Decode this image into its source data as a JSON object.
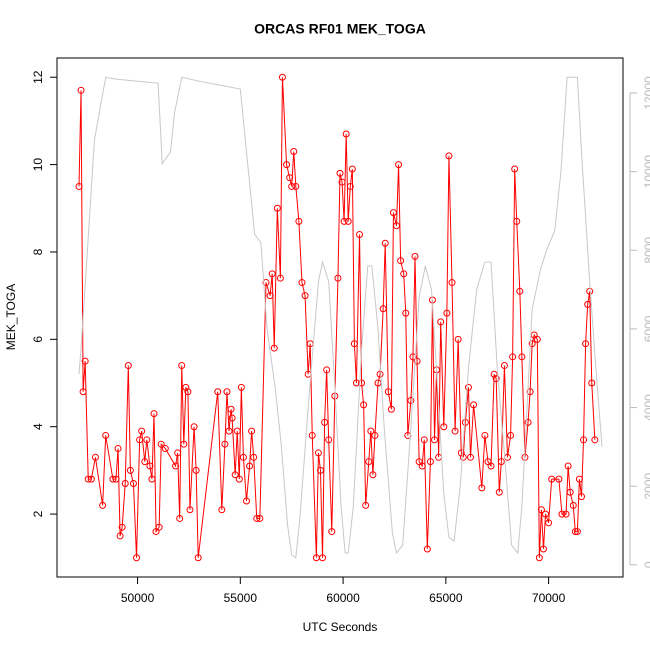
{
  "chart_data": {
    "type": "line",
    "title": "ORCAS RF01 MEK_TOGA",
    "xlabel": "UTC Seconds",
    "ylabel": "MEK_TOGA",
    "xlim": [
      46080,
      73620
    ],
    "xticks": [
      50000,
      55000,
      60000,
      65000,
      70000
    ],
    "ylim": [
      0.56,
      12.44
    ],
    "yticks": [
      2,
      4,
      6,
      8,
      10,
      12
    ],
    "y2lim": [
      -310,
      12890
    ],
    "y2ticks": [
      0,
      2000,
      4000,
      6000,
      8000,
      10000,
      12000
    ],
    "y2color": "#bbbbbb",
    "series": [
      {
        "color": "#ff0000",
        "points": true,
        "x": [
          47150,
          47250,
          47350,
          47450,
          47600,
          47750,
          47950,
          48300,
          48450,
          48800,
          48950,
          49050,
          49150,
          49250,
          49400,
          49550,
          49650,
          49800,
          49950,
          50100,
          50200,
          50350,
          50450,
          50600,
          50700,
          50800,
          50900,
          51050,
          51150,
          51350,
          51850,
          51950,
          52050,
          52150,
          52250,
          52350,
          52450,
          52550,
          52750,
          52850,
          52950,
          53900,
          54100,
          54250,
          54350,
          54450,
          54550,
          54600,
          54750,
          54850,
          54950,
          55050,
          55150,
          55300,
          55450,
          55550,
          55650,
          55800,
          55950,
          56250,
          56450,
          56550,
          56650,
          56800,
          56950,
          57050,
          57250,
          57400,
          57500,
          57600,
          57700,
          57850,
          58000,
          58150,
          58300,
          58400,
          58500,
          58700,
          58800,
          58900,
          59000,
          59100,
          59200,
          59300,
          59450,
          59600,
          59750,
          59850,
          59950,
          60050,
          60150,
          60250,
          60350,
          60450,
          60550,
          60650,
          60800,
          60900,
          61000,
          61100,
          61250,
          61350,
          61450,
          61550,
          61700,
          61800,
          61950,
          62050,
          62200,
          62350,
          62450,
          62600,
          62700,
          62800,
          62950,
          63050,
          63150,
          63300,
          63400,
          63500,
          63600,
          63700,
          63850,
          63950,
          64100,
          64250,
          64350,
          64450,
          64550,
          64650,
          64750,
          64900,
          65050,
          65150,
          65300,
          65450,
          65600,
          65750,
          65850,
          65950,
          66100,
          66200,
          66350,
          66750,
          66900,
          67050,
          67200,
          67350,
          67450,
          67600,
          67700,
          67850,
          68000,
          68150,
          68250,
          68350,
          68450,
          68600,
          68700,
          68850,
          69000,
          69100,
          69200,
          69300,
          69450,
          69550,
          69650,
          69750,
          69850,
          70000,
          70150,
          70500,
          70650,
          70850,
          70950,
          71050,
          71200,
          71300,
          71400,
          71500,
          71600,
          71700,
          71800,
          71900,
          72000,
          72100,
          72250
        ],
        "values": [
          9.5,
          11.7,
          4.8,
          5.5,
          2.8,
          2.8,
          3.3,
          2.2,
          3.8,
          2.8,
          2.8,
          3.5,
          1.5,
          1.7,
          2.7,
          5.4,
          3.0,
          2.7,
          1.0,
          3.7,
          3.9,
          3.2,
          3.7,
          3.1,
          2.8,
          4.3,
          1.6,
          1.7,
          3.6,
          3.5,
          3.1,
          3.4,
          1.9,
          5.4,
          3.6,
          4.9,
          4.8,
          2.1,
          4.0,
          3.0,
          1.0,
          4.8,
          2.1,
          3.6,
          4.8,
          3.9,
          4.4,
          4.2,
          2.9,
          3.9,
          2.8,
          4.9,
          3.3,
          2.3,
          3.1,
          3.9,
          3.3,
          1.9,
          1.9,
          7.3,
          7.0,
          7.5,
          5.8,
          9.0,
          7.4,
          12.0,
          10.0,
          9.7,
          9.5,
          10.3,
          9.5,
          8.7,
          7.3,
          7.0,
          5.2,
          5.9,
          3.8,
          1.0,
          3.4,
          3.0,
          1.0,
          4.1,
          5.3,
          3.7,
          1.6,
          4.7,
          7.4,
          9.8,
          9.6,
          8.7,
          10.7,
          8.7,
          9.5,
          9.9,
          5.9,
          5.0,
          8.4,
          5.0,
          4.5,
          2.2,
          3.2,
          3.9,
          2.9,
          3.8,
          5.0,
          5.2,
          6.7,
          8.2,
          4.8,
          4.4,
          8.9,
          8.6,
          10.0,
          7.8,
          7.5,
          6.6,
          3.8,
          4.6,
          5.6,
          7.9,
          5.5,
          3.2,
          3.1,
          3.7,
          1.2,
          3.2,
          6.9,
          3.7,
          5.3,
          3.3,
          6.4,
          4.0,
          6.6,
          10.2,
          7.3,
          3.9,
          6.0,
          3.4,
          3.3,
          4.1,
          4.9,
          3.3,
          4.5,
          2.6,
          3.8,
          3.2,
          3.1,
          5.2,
          5.1,
          2.5,
          3.2,
          5.4,
          3.3,
          3.8,
          5.6,
          9.9,
          8.7,
          7.1,
          5.6,
          3.3,
          4.1,
          4.8,
          5.9,
          6.1,
          6.0,
          1.0,
          2.1,
          1.2,
          2.0,
          1.8,
          2.8,
          2.8,
          2.0,
          2.0,
          3.1,
          2.5,
          2.2,
          1.6,
          1.6,
          2.8,
          2.4,
          3.7,
          5.9,
          6.8,
          7.1,
          5.0,
          3.7
        ]
      },
      {
        "color": "#c8c8c8",
        "axis": "y2",
        "points": false,
        "x": [
          47150,
          47250,
          47500,
          47900,
          48450,
          49000,
          50000,
          51000,
          51200,
          51600,
          51800,
          52150,
          53000,
          54000,
          55000,
          55300,
          55700,
          56000,
          56300,
          56700,
          57000,
          57300,
          57500,
          57700,
          57900,
          58300,
          58800,
          59000,
          59300,
          59600,
          59900,
          60100,
          60250,
          60500,
          60900,
          61200,
          61400,
          61700,
          62000,
          62400,
          62600,
          62900,
          63300,
          63700,
          64000,
          64300,
          64600,
          64900,
          65150,
          65400,
          65700,
          66100,
          66500,
          66900,
          67200,
          67500,
          67900,
          68200,
          68500,
          68700,
          68900,
          69200,
          69600,
          69900,
          70300,
          70600,
          70900,
          71400,
          71600,
          72000,
          72300,
          72600
        ],
        "values": [
          4850,
          5500,
          7500,
          10800,
          12400,
          12350,
          12300,
          12250,
          10200,
          10500,
          11500,
          12400,
          12300,
          12200,
          12100,
          10500,
          8400,
          8200,
          6000,
          4500,
          3000,
          1000,
          250,
          180,
          1200,
          4000,
          7200,
          7700,
          7200,
          4500,
          1500,
          300,
          300,
          1500,
          5500,
          7600,
          7600,
          6000,
          3500,
          800,
          300,
          500,
          3500,
          6800,
          7600,
          7000,
          4500,
          1800,
          700,
          600,
          2000,
          5000,
          7000,
          7700,
          7700,
          5000,
          2500,
          500,
          300,
          1500,
          3500,
          6500,
          7500,
          8000,
          8500,
          10000,
          12400,
          12400,
          10500,
          7200,
          5000,
          3000
        ]
      }
    ]
  }
}
